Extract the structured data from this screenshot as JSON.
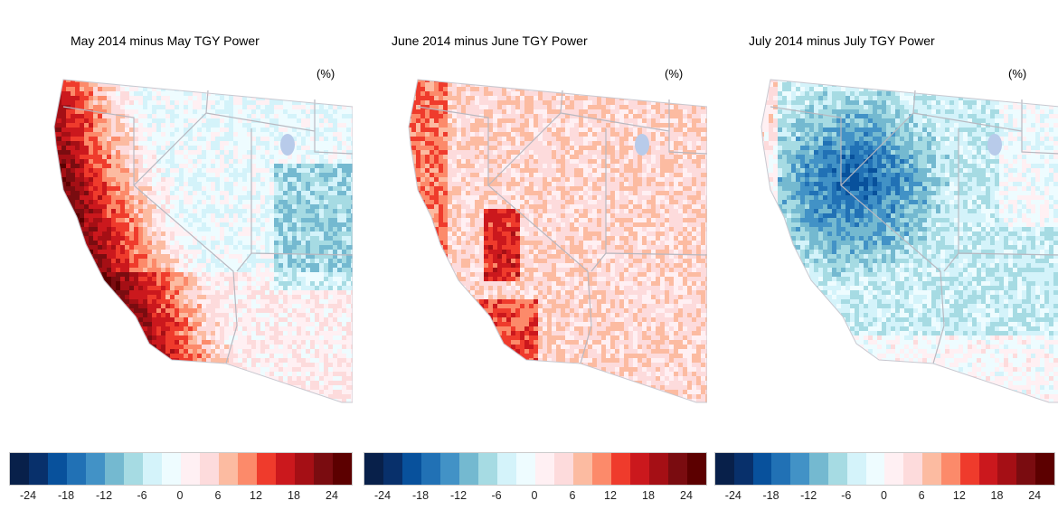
{
  "panels": [
    {
      "title": "May 2014 minus May TGY Power",
      "unit": "(%)",
      "pattern": "coast-red-interior-blue"
    },
    {
      "title": "June 2014 minus June TGY Power",
      "unit": "(%)",
      "pattern": "mostly-red"
    },
    {
      "title": "July 2014 minus July TGY Power",
      "unit": "(%)",
      "pattern": "mostly-blue"
    }
  ],
  "colorbar": {
    "colors": [
      "#08204a",
      "#08306b",
      "#08519c",
      "#2171b5",
      "#4292c6",
      "#74b9d0",
      "#a6dbe3",
      "#d4f3fa",
      "#eefcff",
      "#fff0f3",
      "#fddbdc",
      "#fcbba1",
      "#fc8a6a",
      "#ef3b2c",
      "#cb181d",
      "#a50f15",
      "#7a0c10",
      "#5c0000"
    ],
    "tick_labels": [
      "-24",
      "-18",
      "-12",
      "-6",
      "0",
      "6",
      "12",
      "18",
      "24"
    ],
    "range": [
      -27,
      27
    ]
  }
}
